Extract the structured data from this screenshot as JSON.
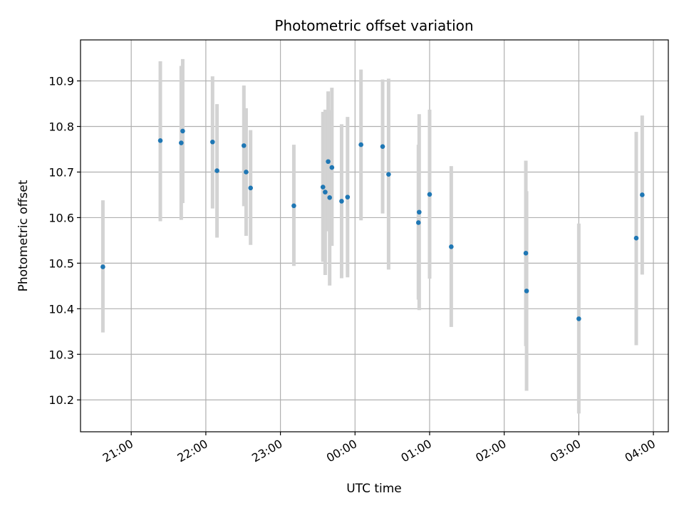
{
  "chart_data": {
    "type": "scatter",
    "title": "Photometric offset variation",
    "xlabel": "UTC time",
    "ylabel": "Photometric offset",
    "x_unit": "UTC time (hours, continuing past midnight as 24+)",
    "xlim": [
      20.32,
      28.2
    ],
    "ylim": [
      10.13,
      10.99
    ],
    "grid": true,
    "x_ticks": [
      {
        "value": 21,
        "label": "21:00"
      },
      {
        "value": 22,
        "label": "22:00"
      },
      {
        "value": 23,
        "label": "23:00"
      },
      {
        "value": 24,
        "label": "00:00"
      },
      {
        "value": 25,
        "label": "01:00"
      },
      {
        "value": 26,
        "label": "02:00"
      },
      {
        "value": 27,
        "label": "03:00"
      },
      {
        "value": 28,
        "label": "04:00"
      }
    ],
    "y_ticks": [
      {
        "value": 10.2,
        "label": "10.2"
      },
      {
        "value": 10.3,
        "label": "10.3"
      },
      {
        "value": 10.4,
        "label": "10.4"
      },
      {
        "value": 10.5,
        "label": "10.5"
      },
      {
        "value": 10.6,
        "label": "10.6"
      },
      {
        "value": 10.7,
        "label": "10.7"
      },
      {
        "value": 10.8,
        "label": "10.8"
      },
      {
        "value": 10.9,
        "label": "10.9"
      }
    ],
    "point_color": "#1f77b4",
    "errorbar_color": "#d3d3d3",
    "points": [
      {
        "x": 20.62,
        "y": 10.492,
        "lo": 10.348,
        "hi": 10.638
      },
      {
        "x": 21.39,
        "y": 10.769,
        "lo": 10.592,
        "hi": 10.943
      },
      {
        "x": 21.67,
        "y": 10.764,
        "lo": 10.595,
        "hi": 10.933
      },
      {
        "x": 21.69,
        "y": 10.79,
        "lo": 10.632,
        "hi": 10.948
      },
      {
        "x": 22.09,
        "y": 10.766,
        "lo": 10.62,
        "hi": 10.91
      },
      {
        "x": 22.15,
        "y": 10.703,
        "lo": 10.556,
        "hi": 10.849
      },
      {
        "x": 22.51,
        "y": 10.758,
        "lo": 10.625,
        "hi": 10.89
      },
      {
        "x": 22.54,
        "y": 10.7,
        "lo": 10.56,
        "hi": 10.84
      },
      {
        "x": 22.6,
        "y": 10.665,
        "lo": 10.54,
        "hi": 10.792
      },
      {
        "x": 23.18,
        "y": 10.626,
        "lo": 10.494,
        "hi": 10.76
      },
      {
        "x": 23.57,
        "y": 10.667,
        "lo": 10.503,
        "hi": 10.832
      },
      {
        "x": 23.6,
        "y": 10.656,
        "lo": 10.474,
        "hi": 10.837
      },
      {
        "x": 23.64,
        "y": 10.723,
        "lo": 10.57,
        "hi": 10.877
      },
      {
        "x": 23.66,
        "y": 10.644,
        "lo": 10.451,
        "hi": 10.836
      },
      {
        "x": 23.69,
        "y": 10.71,
        "lo": 10.538,
        "hi": 10.885
      },
      {
        "x": 23.82,
        "y": 10.636,
        "lo": 10.467,
        "hi": 10.805
      },
      {
        "x": 23.9,
        "y": 10.645,
        "lo": 10.469,
        "hi": 10.821
      },
      {
        "x": 24.08,
        "y": 10.76,
        "lo": 10.594,
        "hi": 10.925
      },
      {
        "x": 24.37,
        "y": 10.756,
        "lo": 10.609,
        "hi": 10.903
      },
      {
        "x": 24.45,
        "y": 10.695,
        "lo": 10.486,
        "hi": 10.905
      },
      {
        "x": 24.85,
        "y": 10.589,
        "lo": 10.42,
        "hi": 10.76
      },
      {
        "x": 24.86,
        "y": 10.612,
        "lo": 10.397,
        "hi": 10.827
      },
      {
        "x": 25.0,
        "y": 10.651,
        "lo": 10.466,
        "hi": 10.837
      },
      {
        "x": 25.29,
        "y": 10.536,
        "lo": 10.36,
        "hi": 10.713
      },
      {
        "x": 26.29,
        "y": 10.522,
        "lo": 10.318,
        "hi": 10.725
      },
      {
        "x": 26.3,
        "y": 10.439,
        "lo": 10.22,
        "hi": 10.658
      },
      {
        "x": 27.0,
        "y": 10.378,
        "lo": 10.17,
        "hi": 10.587
      },
      {
        "x": 27.77,
        "y": 10.555,
        "lo": 10.32,
        "hi": 10.788
      },
      {
        "x": 27.85,
        "y": 10.65,
        "lo": 10.475,
        "hi": 10.824
      }
    ]
  }
}
